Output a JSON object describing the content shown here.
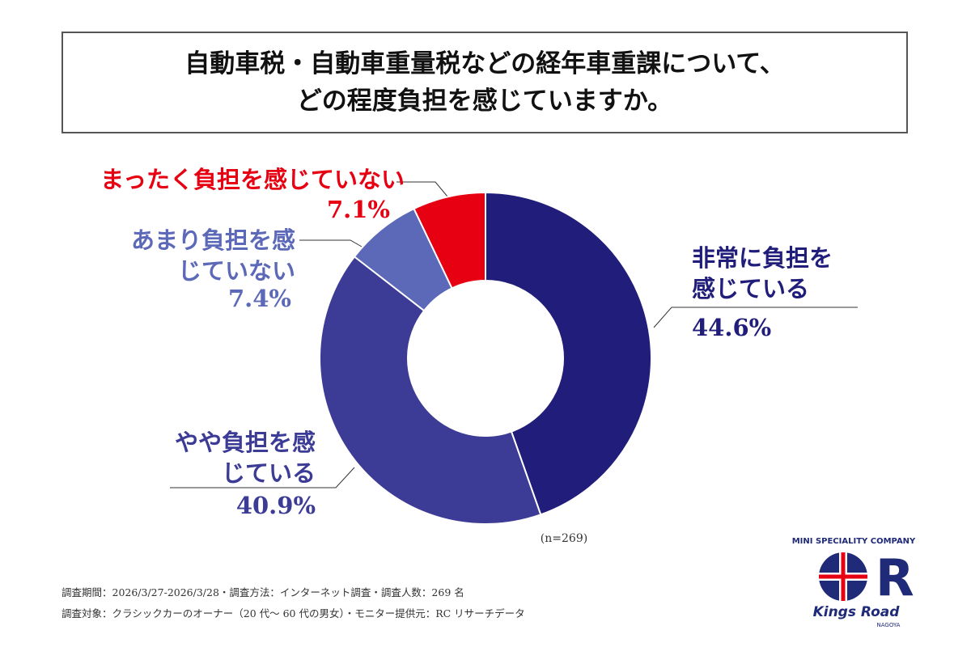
{
  "chart_data": {
    "type": "donut",
    "title": [
      "自動車税・自動車重量税などの経年車重課について、",
      "どの程度負担を感じていますか。"
    ],
    "categories": [
      "非常に負担を感じている",
      "やや負担を感じている",
      "あまり負担を感じていない",
      "まったく負担を感じていない"
    ],
    "values": [
      44.6,
      40.9,
      7.4,
      7.1
    ],
    "value_labels": [
      "44.6%",
      "40.9%",
      "7.4%",
      "7.1%"
    ],
    "colors": [
      "#211d7a",
      "#3c3c96",
      "#5c68b8",
      "#e60012"
    ],
    "note": "(n=269)",
    "footnotes": [
      "調査期間：2026/3/27-2026/3/28・調査方法：インターネット調査・調査人数：269 名",
      "調査対象：クラシックカーのオーナー（20 代～ 60 代の男女）・モニター提供元：RC リサーチデータ"
    ]
  },
  "logo": {
    "tagline": "MINI SPECIALITY COMPANY",
    "name": "Kings Road",
    "city": "NAGOYA"
  }
}
